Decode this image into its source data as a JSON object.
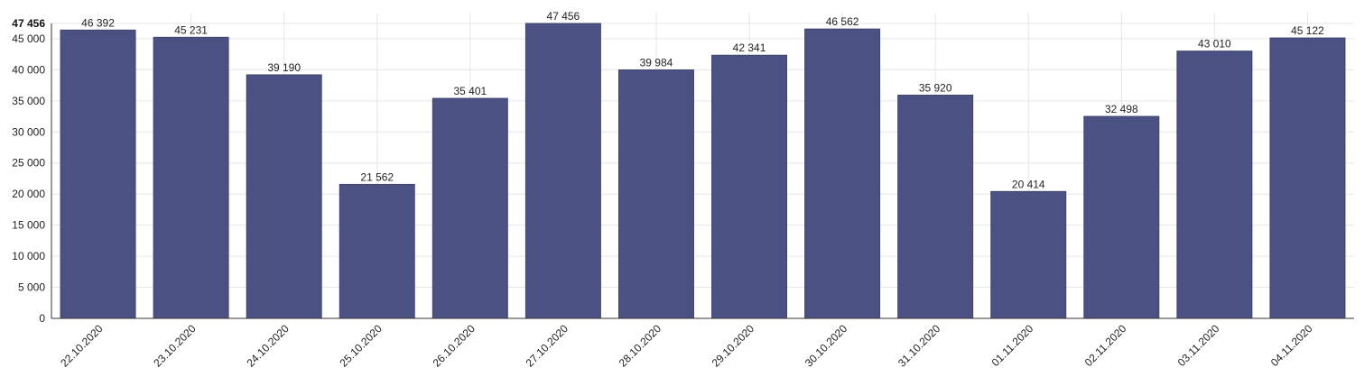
{
  "chart_data": {
    "type": "bar",
    "categories": [
      "22.10.2020",
      "23.10.2020",
      "24.10.2020",
      "25.10.2020",
      "26.10.2020",
      "27.10.2020",
      "28.10.2020",
      "29.10.2020",
      "30.10.2020",
      "31.10.2020",
      "01.11.2020",
      "02.11.2020",
      "03.11.2020",
      "04.11.2020"
    ],
    "values": [
      46392,
      45231,
      39190,
      21562,
      35401,
      47456,
      39984,
      42341,
      46562,
      35920,
      20414,
      32498,
      43010,
      45122
    ],
    "value_labels": [
      "46 392",
      "45 231",
      "39 190",
      "21 562",
      "35 401",
      "47 456",
      "39 984",
      "42 341",
      "46 562",
      "35 920",
      "20 414",
      "32 498",
      "43 010",
      "45 122"
    ],
    "y_ticks": [
      0,
      5000,
      10000,
      15000,
      20000,
      25000,
      30000,
      35000,
      40000,
      45000
    ],
    "y_tick_labels": [
      "0",
      "5 000",
      "10 000",
      "15 000",
      "20 000",
      "25 000",
      "30 000",
      "35 000",
      "40 000",
      "45 000"
    ],
    "y_max_label": "47 456",
    "ylim": [
      0,
      47456
    ],
    "grid": true,
    "bar_color": "#4b5182"
  }
}
